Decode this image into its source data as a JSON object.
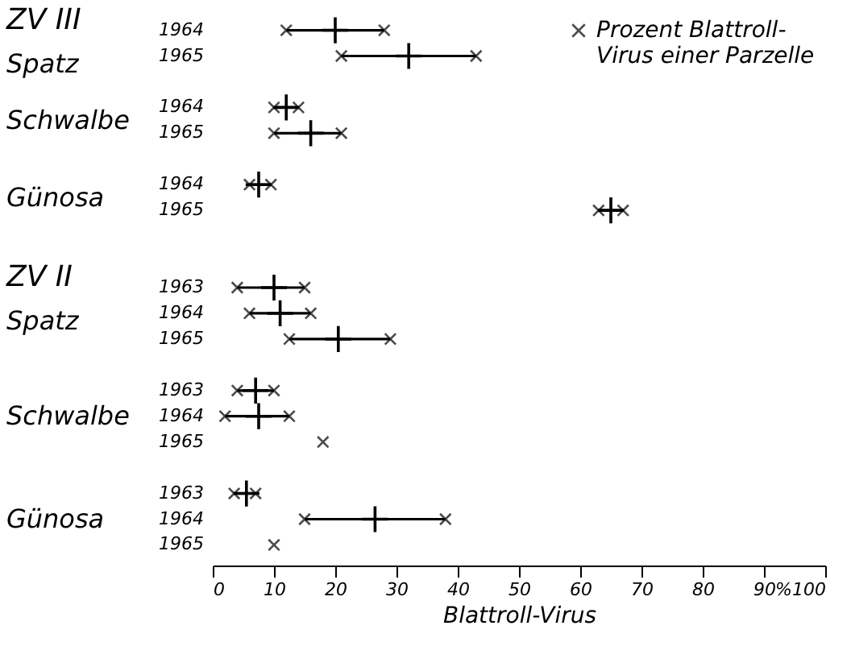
{
  "chart_data": {
    "type": "scatter",
    "orientation": "horizontal",
    "xlabel": "Blattroll-Virus",
    "categories": [
      "1964",
      "1965",
      null,
      "1964",
      "1965",
      null,
      "1964",
      "1965",
      null,
      null,
      "1963",
      "1964",
      "1965",
      null,
      "1963",
      "1964",
      "1965",
      null,
      "1963",
      "1964",
      "1965"
    ],
    "annotations": [
      "ZV III",
      "Spatz",
      "Schwalbe",
      "Günosa",
      "ZV II",
      "Spatz",
      "Schwalbe",
      "Günosa"
    ],
    "series": [
      {
        "name": "Prozent Blattroll-Virus einer Parzelle",
        "marker": "cross",
        "color": "#000000",
        "values": [
          12,
          21,
          null,
          10,
          10,
          null,
          6,
          63,
          null,
          null,
          4,
          6,
          12.5,
          null,
          4,
          2,
          18,
          null,
          3.5,
          15,
          10
        ]
      },
      {
        "marker": "cross",
        "color": "#000000",
        "values": [
          28,
          43,
          null,
          14,
          21,
          null,
          9.5,
          67,
          null,
          null,
          15,
          16,
          29,
          null,
          10,
          12.5,
          null,
          null,
          7,
          38,
          null
        ]
      },
      {
        "color": "#000000",
        "values": [
          20,
          32,
          null,
          12,
          16,
          null,
          7.5,
          65,
          null,
          null,
          10,
          11,
          20.5,
          null,
          7,
          7.5,
          null,
          null,
          5.5,
          26.5,
          null
        ]
      }
    ],
    "xlim": [
      0,
      100
    ],
    "xticks": [
      0,
      10,
      20,
      30,
      40,
      50,
      60,
      70,
      80,
      90,
      {
        "value": 100,
        "label": "%100"
      }
    ],
    "legend": "top right",
    "grid": false
  }
}
